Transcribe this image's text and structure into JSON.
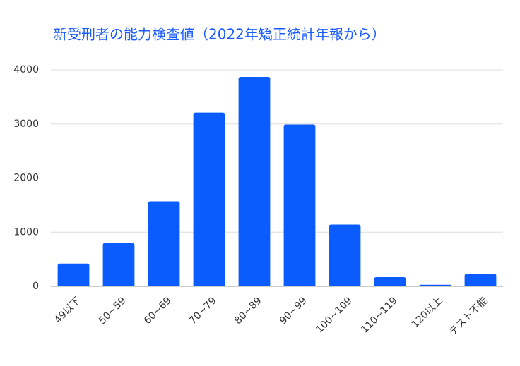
{
  "chart_data": {
    "type": "bar",
    "title": "新受刑者の能力検査値（2022年矯正統計年報から）",
    "categories": [
      "49以下",
      "50~59",
      "60~69",
      "70~79",
      "80~89",
      "90~99",
      "100~109",
      "110~119",
      "120以上",
      "テスト不能"
    ],
    "values": [
      420,
      800,
      1570,
      3210,
      3870,
      2990,
      1140,
      170,
      30,
      230
    ],
    "color": "#0a5cff",
    "ylim": [
      0,
      4000
    ],
    "yticks": [
      0,
      1000,
      2000,
      3000,
      4000
    ],
    "grid": true
  }
}
